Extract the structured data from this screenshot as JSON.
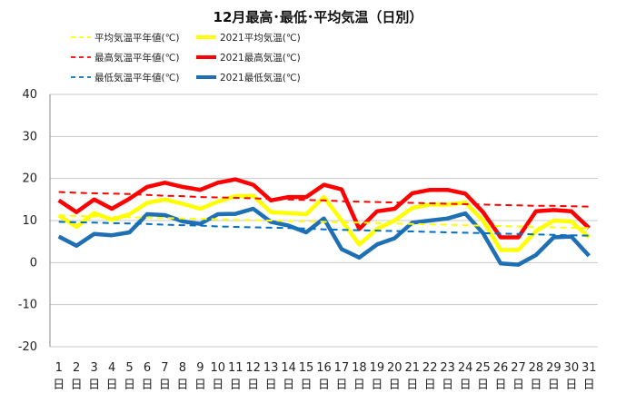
{
  "chart_data": {
    "type": "line",
    "title": "12月最高･最低･平均気温（日別）",
    "xlabel": "",
    "ylabel": "",
    "ylim": [
      -20,
      40
    ],
    "yticks": [
      -20,
      -10,
      0,
      10,
      20,
      30,
      40
    ],
    "grid": "horizontal",
    "legend_position": "top",
    "x_day_suffix": "日",
    "categories": [
      "1",
      "2",
      "3",
      "4",
      "5",
      "6",
      "7",
      "8",
      "9",
      "10",
      "11",
      "12",
      "13",
      "14",
      "15",
      "16",
      "17",
      "18",
      "19",
      "20",
      "21",
      "22",
      "23",
      "24",
      "25",
      "26",
      "27",
      "28",
      "29",
      "30",
      "31"
    ],
    "series": [
      {
        "name": "平均気温平年値(℃)",
        "color": "#ffff00",
        "dash": true,
        "values": [
          11.2,
          11.1,
          11.0,
          10.9,
          10.8,
          10.7,
          10.6,
          10.5,
          10.4,
          10.3,
          10.2,
          10.1,
          10.0,
          9.9,
          9.8,
          9.7,
          9.6,
          9.5,
          9.4,
          9.3,
          9.2,
          9.1,
          9.0,
          8.9,
          8.8,
          8.7,
          8.6,
          8.5,
          8.4,
          8.3,
          8.2
        ]
      },
      {
        "name": "2021平均気温(℃)",
        "color": "#ffff00",
        "dash": false,
        "values": [
          11.2,
          8.5,
          11.8,
          10.2,
          11.5,
          14.2,
          15.0,
          14.0,
          12.8,
          14.5,
          15.8,
          15.9,
          12.0,
          11.8,
          11.5,
          15.6,
          10.0,
          4.3,
          8.0,
          10.0,
          13.0,
          13.8,
          13.8,
          14.3,
          10.0,
          3.0,
          3.0,
          7.5,
          10.0,
          9.8,
          6.0
        ]
      },
      {
        "name": "最高気温平年値(℃)",
        "color": "#ff0000",
        "dash": true,
        "values": [
          16.8,
          16.6,
          16.5,
          16.4,
          16.3,
          16.1,
          15.9,
          15.8,
          15.6,
          15.5,
          15.4,
          15.3,
          15.1,
          15.0,
          14.9,
          14.8,
          14.6,
          14.5,
          14.4,
          14.3,
          14.2,
          14.1,
          14.0,
          13.9,
          13.8,
          13.7,
          13.6,
          13.5,
          13.5,
          13.4,
          13.3
        ]
      },
      {
        "name": "2021最高気温(℃)",
        "color": "#ff0000",
        "dash": false,
        "values": [
          14.8,
          12.0,
          15.0,
          12.8,
          15.2,
          18.0,
          19.0,
          18.0,
          17.3,
          19.0,
          19.8,
          18.5,
          14.8,
          15.6,
          15.6,
          18.5,
          17.4,
          8.0,
          12.2,
          12.8,
          16.5,
          17.3,
          17.3,
          16.4,
          12.0,
          6.0,
          6.0,
          12.2,
          12.5,
          12.2,
          8.2
        ]
      },
      {
        "name": "最低気温平年値(℃)",
        "color": "#0070c0",
        "dash": true,
        "values": [
          9.7,
          9.6,
          9.5,
          9.4,
          9.3,
          9.2,
          9.0,
          8.9,
          8.8,
          8.6,
          8.5,
          8.4,
          8.3,
          8.2,
          8.1,
          7.9,
          7.8,
          7.7,
          7.6,
          7.5,
          7.4,
          7.3,
          7.2,
          7.1,
          7.0,
          6.9,
          6.8,
          6.7,
          6.6,
          6.5,
          6.4
        ]
      },
      {
        "name": "2021最低気温(℃)",
        "color": "#1f6fb5",
        "dash": false,
        "values": [
          6.2,
          4.0,
          6.8,
          6.5,
          7.2,
          11.5,
          11.3,
          9.8,
          9.2,
          11.5,
          11.6,
          12.8,
          9.7,
          8.8,
          7.2,
          10.5,
          3.2,
          1.2,
          4.3,
          5.8,
          9.5,
          10.0,
          10.5,
          11.7,
          7.0,
          -0.2,
          -0.5,
          1.8,
          6.0,
          6.2,
          1.6
        ]
      }
    ]
  }
}
